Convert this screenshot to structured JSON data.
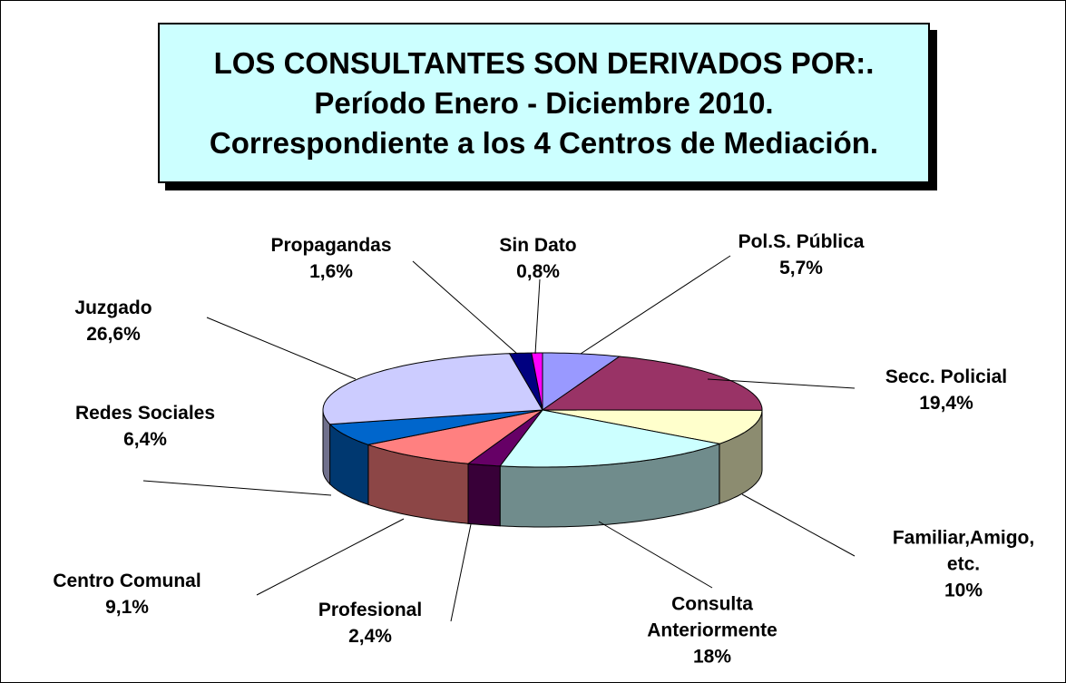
{
  "chart_data": {
    "type": "pie3d",
    "title": "LOS CONSULTANTES SON DERIVADOS POR:.",
    "subtitle": [
      "Período Enero - Diciembre 2010.",
      "Correspondiente a los 4 Centros de Mediación."
    ],
    "categories": [
      "Pol.S. Pública",
      "Secc. Policial",
      "Familiar,Amigo, etc.",
      "Consulta Anteriormente",
      "Profesional",
      "Centro Comunal",
      "Redes Sociales",
      "Juzgado",
      "Propagandas",
      "Sin Dato"
    ],
    "values": [
      5.7,
      19.4,
      10,
      18,
      2.4,
      9.1,
      6.4,
      26.6,
      1.6,
      0.8
    ],
    "value_labels": [
      "5,7%",
      "19,4%",
      "10%",
      "18%",
      "2,4%",
      "9,1%",
      "6,4%",
      "26,6%",
      "1,6%",
      "0,8%"
    ],
    "colors": [
      "#9999ff",
      "#993366",
      "#ffffcc",
      "#ccffff",
      "#660066",
      "#ff8080",
      "#0066cc",
      "#ccccff",
      "#000080",
      "#ff00ff"
    ]
  }
}
